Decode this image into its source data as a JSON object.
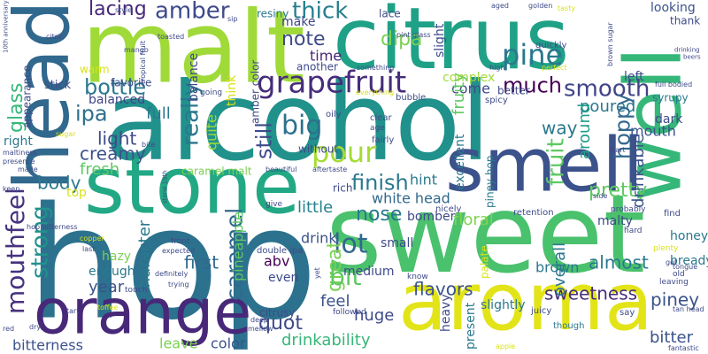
{
  "words": [
    {
      "text": "hop",
      "color": "#2c728e"
    },
    {
      "text": "sweet",
      "color": "#4ac16d"
    },
    {
      "text": "alcohol",
      "color": "#21918c"
    },
    {
      "text": "malt",
      "color": "#a0da39"
    },
    {
      "text": "citrus",
      "color": "#1fa187"
    },
    {
      "text": "stone",
      "color": "#22a884"
    },
    {
      "text": "smell",
      "color": "#3b528b"
    },
    {
      "text": "aroma",
      "color": "#e2e418"
    },
    {
      "text": "orange",
      "color": "#482878"
    },
    {
      "text": "head",
      "color": "#31688e"
    },
    {
      "text": "well",
      "color": "#35b779"
    },
    {
      "text": "grapefruit",
      "color": "#472d7b"
    },
    {
      "text": "pour",
      "color": "#a5db36"
    },
    {
      "text": "big",
      "color": "#2c718e"
    },
    {
      "text": "pine",
      "color": "#2a788e"
    },
    {
      "text": "much",
      "color": "#440154"
    },
    {
      "text": "smooth",
      "color": "#414487"
    },
    {
      "text": "thick",
      "color": "#277f8e"
    },
    {
      "text": "amber",
      "color": "#3e4a89"
    },
    {
      "text": "lacing",
      "color": "#482878"
    },
    {
      "text": "bottle",
      "color": "#2a788e"
    },
    {
      "text": "ipa",
      "color": "#2d708e"
    },
    {
      "text": "note",
      "color": "#3e4a89"
    },
    {
      "text": "make",
      "color": "#414487"
    },
    {
      "text": "time",
      "color": "#482576"
    },
    {
      "text": "dipa",
      "color": "#7ad151"
    },
    {
      "text": "finish",
      "color": "#2a788e"
    },
    {
      "text": "nose",
      "color": "#2a788e"
    },
    {
      "text": "white head",
      "color": "#31688e"
    },
    {
      "text": "hint",
      "color": "#2a788e"
    },
    {
      "text": "floral",
      "color": "#7fd34e"
    },
    {
      "text": "lot",
      "color": "#31688e"
    },
    {
      "text": "great",
      "color": "#7ad151"
    },
    {
      "text": "quot",
      "color": "#3e4a89"
    },
    {
      "text": "drinkability",
      "color": "#35b779"
    },
    {
      "text": "little",
      "color": "#26828e"
    },
    {
      "text": "drink",
      "color": "#3b528b"
    },
    {
      "text": "bit",
      "color": "#5ec962"
    },
    {
      "text": "feel",
      "color": "#3b528b"
    },
    {
      "text": "huge",
      "color": "#3e4a89"
    },
    {
      "text": "flavors",
      "color": "#3b528b"
    },
    {
      "text": "brown",
      "color": "#2a788e"
    },
    {
      "text": "almost",
      "color": "#2a788e"
    },
    {
      "text": "sweetness",
      "color": "#472d7b"
    },
    {
      "text": "piney",
      "color": "#3b528b"
    },
    {
      "text": "bitter",
      "color": "#3b528b"
    },
    {
      "text": "honey",
      "color": "#2a788e"
    },
    {
      "text": "bready",
      "color": "#2a788e"
    },
    {
      "text": "malty",
      "color": "#3e4a89"
    },
    {
      "text": "pretty",
      "color": "#5ec962"
    },
    {
      "text": "dark",
      "color": "#3e4a89"
    },
    {
      "text": "syrupy",
      "color": "#2a788e"
    },
    {
      "text": "thank",
      "color": "#3e4a89"
    },
    {
      "text": "looking",
      "color": "#3b528b"
    },
    {
      "text": "mouth",
      "color": "#3b528b"
    },
    {
      "text": "poured",
      "color": "#2a788e"
    },
    {
      "text": "left",
      "color": "#3e4a89"
    },
    {
      "text": "way",
      "color": "#2a788e"
    },
    {
      "text": "come",
      "color": "#3e4a89"
    },
    {
      "text": "better",
      "color": "#3e4a89"
    },
    {
      "text": "excellent",
      "color": "#2a788e"
    },
    {
      "text": "piney hop",
      "color": "#2a788e"
    },
    {
      "text": "slight",
      "color": "#3e4a89"
    },
    {
      "text": "lace",
      "color": "#3e4a89"
    },
    {
      "text": "another",
      "color": "#3e4a89"
    },
    {
      "text": "resiny",
      "color": "#2a788e"
    },
    {
      "text": "amber color",
      "color": "#3e4a89"
    },
    {
      "text": "medium",
      "color": "#3e4a89"
    },
    {
      "text": "small",
      "color": "#3e4a89"
    },
    {
      "text": "heavy",
      "color": "#3e4a89"
    },
    {
      "text": "slightly",
      "color": "#2a788e"
    },
    {
      "text": "palate",
      "color": "#d8e219"
    },
    {
      "text": "present",
      "color": "#2a788e"
    },
    {
      "text": "even",
      "color": "#3e4a89"
    },
    {
      "text": "bomber",
      "color": "#3e4a89"
    },
    {
      "text": "citrusy",
      "color": "#3e4a89"
    },
    {
      "text": "double ipa",
      "color": "#3e4a89"
    },
    {
      "text": "mouthfeel",
      "color": "#46327e"
    },
    {
      "text": "strong",
      "color": "#21918c"
    },
    {
      "text": "glass",
      "color": "#35b779"
    },
    {
      "text": "really",
      "color": "#2a788e"
    },
    {
      "text": "caramel",
      "color": "#31688e"
    },
    {
      "text": "still",
      "color": "#3e4a89"
    },
    {
      "text": "fruit",
      "color": "#5ec962"
    },
    {
      "text": "hoppy",
      "color": "#31688e"
    },
    {
      "text": "drinkable",
      "color": "#3b528b"
    },
    {
      "text": "overall",
      "color": "#2a788e"
    },
    {
      "text": "around",
      "color": "#1f9e89"
    },
    {
      "text": "fruity",
      "color": "#5ec962"
    },
    {
      "text": "character",
      "color": "#2a788e"
    },
    {
      "text": "balance",
      "color": "#3e4a89"
    },
    {
      "text": "quite",
      "color": "#a0da39"
    },
    {
      "text": "think",
      "color": "#d8e219"
    },
    {
      "text": "pineapple",
      "color": "#5ec962"
    },
    {
      "text": "creamy",
      "color": "#3b528b"
    },
    {
      "text": "light",
      "color": "#3e4a89"
    },
    {
      "text": "full",
      "color": "#2a788e"
    },
    {
      "text": "fresh",
      "color": "#5ec962"
    },
    {
      "text": "body",
      "color": "#2a788e"
    },
    {
      "text": "balanced",
      "color": "#414487"
    },
    {
      "text": "favorite",
      "color": "#3e4a89"
    },
    {
      "text": "stick",
      "color": "#3e4a89"
    },
    {
      "text": "warm",
      "color": "#d8e219"
    },
    {
      "text": "appearance",
      "color": "#3e4a89"
    },
    {
      "text": "right",
      "color": "#2a788e"
    },
    {
      "text": "top",
      "color": "#d8e219"
    },
    {
      "text": "caramel malt",
      "color": "#7ad151"
    },
    {
      "text": "first",
      "color": "#31688e"
    },
    {
      "text": "year",
      "color": "#3b528b"
    },
    {
      "text": "enough",
      "color": "#2a788e"
    },
    {
      "text": "hazy",
      "color": "#7ad151"
    },
    {
      "text": "bitterness",
      "color": "#3b528b"
    },
    {
      "text": "leave",
      "color": "#7ad151"
    },
    {
      "text": "color",
      "color": "#3b528b"
    },
    {
      "text": "abv",
      "color": "#440154"
    },
    {
      "text": "juicy",
      "color": "#3e4a89"
    },
    {
      "text": "though",
      "color": "#2a788e"
    },
    {
      "text": "say",
      "color": "#3e4a89"
    },
    {
      "text": "apple",
      "color": "#d8e219"
    },
    {
      "text": "know",
      "color": "#3e4a89"
    },
    {
      "text": "followed",
      "color": "#3e4a89"
    },
    {
      "text": "tan head",
      "color": "#3e4a89"
    },
    {
      "text": "fantastic",
      "color": "#3e4a89"
    },
    {
      "text": "old",
      "color": "#3e4a89"
    },
    {
      "text": "leaving",
      "color": "#3e4a89"
    },
    {
      "text": "plenty",
      "color": "#d8e219"
    },
    {
      "text": "hard",
      "color": "#3e4a89"
    },
    {
      "text": "find",
      "color": "#3e4a89"
    },
    {
      "text": "probably",
      "color": "#3e4a89"
    },
    {
      "text": "retention",
      "color": "#3e4a89"
    },
    {
      "text": "nicely",
      "color": "#3e4a89"
    },
    {
      "text": "side",
      "color": "#3e4a89"
    },
    {
      "text": "start",
      "color": "#3e4a89"
    },
    {
      "text": "complex",
      "color": "#a0da39"
    },
    {
      "text": "spicy",
      "color": "#3e4a89"
    },
    {
      "text": "high",
      "color": "#3e4a89"
    },
    {
      "text": "quickly",
      "color": "#3e4a89"
    },
    {
      "text": "perfect",
      "color": "#d8e219"
    },
    {
      "text": "golden",
      "color": "#3e4a89"
    },
    {
      "text": "tasty",
      "color": "#d8e219"
    },
    {
      "text": "full bodied",
      "color": "#3e4a89"
    },
    {
      "text": "brown sugar",
      "color": "#3e4a89"
    },
    {
      "text": "drinking",
      "color": "#3e4a89"
    },
    {
      "text": "something",
      "color": "#3e4a89"
    },
    {
      "text": "everything",
      "color": "#d8e219"
    },
    {
      "text": "clear",
      "color": "#3e4a89"
    },
    {
      "text": "bubble",
      "color": "#3e4a89"
    },
    {
      "text": "fairly",
      "color": "#3e4a89"
    },
    {
      "text": "oily",
      "color": "#3e4a89"
    },
    {
      "text": "age",
      "color": "#3e4a89"
    },
    {
      "text": "without",
      "color": "#3e4a89"
    },
    {
      "text": "sip",
      "color": "#3e4a89"
    },
    {
      "text": "style",
      "color": "#3e4a89"
    },
    {
      "text": "toasted",
      "color": "#3e4a89"
    },
    {
      "text": "mango",
      "color": "#3e4a89"
    },
    {
      "text": "tropical fruit",
      "color": "#3e4a89"
    },
    {
      "text": "10th anniversary",
      "color": "#3e4a89"
    },
    {
      "text": "maltiness",
      "color": "#3e4a89"
    },
    {
      "text": "presence",
      "color": "#3e4a89"
    },
    {
      "text": "made",
      "color": "#3e4a89"
    },
    {
      "text": "keep",
      "color": "#3e4a89"
    },
    {
      "text": "citric",
      "color": "#3e4a89"
    },
    {
      "text": "sugar",
      "color": "#d8e219"
    },
    {
      "text": "hop bitterness",
      "color": "#3e4a89"
    },
    {
      "text": "copper",
      "color": "#d8e219"
    },
    {
      "text": "last",
      "color": "#3e4a89"
    },
    {
      "text": "toffee",
      "color": "#d8e219"
    },
    {
      "text": "tart",
      "color": "#3e4a89"
    },
    {
      "text": "red",
      "color": "#3e4a89"
    },
    {
      "text": "dry",
      "color": "#3e4a89"
    },
    {
      "text": "touch",
      "color": "#3e4a89"
    },
    {
      "text": "trying",
      "color": "#3e4a89"
    },
    {
      "text": "definitely",
      "color": "#3e4a89"
    },
    {
      "text": "expected",
      "color": "#3e4a89"
    },
    {
      "text": "front",
      "color": "#3e4a89"
    },
    {
      "text": "stone 10th",
      "color": "#3e4a89"
    },
    {
      "text": "aftertaste",
      "color": "#3e4a89"
    },
    {
      "text": "give",
      "color": "#3e4a89"
    },
    {
      "text": "beautiful",
      "color": "#3e4a89"
    },
    {
      "text": "bite",
      "color": "#3e4a89"
    },
    {
      "text": "going",
      "color": "#3e4a89"
    },
    {
      "text": "deep",
      "color": "#3e4a89"
    },
    {
      "text": "mellow",
      "color": "#3e4a89"
    },
    {
      "text": "yet",
      "color": "#3e4a89"
    },
    {
      "text": "pint glass",
      "color": "#3e4a89"
    },
    {
      "text": "aged",
      "color": "#3e4a89"
    },
    {
      "text": "rich",
      "color": "#3e4a89"
    },
    {
      "text": "beers",
      "color": "#3e4a89"
    },
    {
      "text": "got",
      "color": "#3e4a89"
    },
    {
      "text": "tongue",
      "color": "#3e4a89"
    }
  ]
}
